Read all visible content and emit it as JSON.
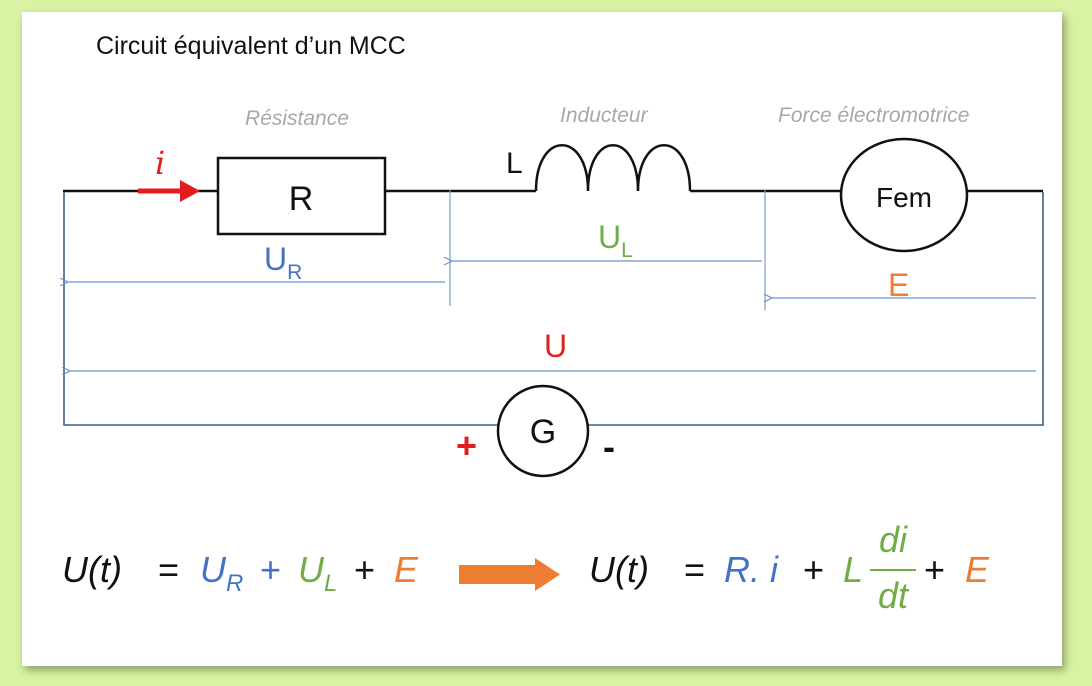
{
  "title": "Circuit équivalent d’un MCC",
  "captions": {
    "resistance": "Résistance",
    "inductor": "Inducteur",
    "emf": "Force électromotrice"
  },
  "components": {
    "resistor": "R",
    "inductor": "L",
    "emf": "Fem",
    "generator": "G",
    "plus": "+",
    "minus": "-",
    "current": "i"
  },
  "voltages": {
    "ur_main": "U",
    "ur_sub": "R",
    "ul_main": "U",
    "ul_sub": "L",
    "e": "E",
    "u": "U"
  },
  "equations": {
    "left": {
      "u": "U(t)",
      "eq": "=",
      "ur": "U",
      "ur_sub": "R",
      "plus1": "+",
      "ul": "U",
      "ul_sub": "L",
      "plus2": "+",
      "e": "E"
    },
    "right": {
      "u": "U(t)",
      "eq": "=",
      "ri": "R. i",
      "plus1": "+",
      "l": "L",
      "num": "di",
      "den": "dt",
      "plus2": "+",
      "e": "E"
    }
  },
  "colors": {
    "red": "#e31c1c",
    "blue": "#4472c4",
    "green": "#70ad47",
    "orange": "#ed7d31",
    "background": "#d9f2a3"
  }
}
